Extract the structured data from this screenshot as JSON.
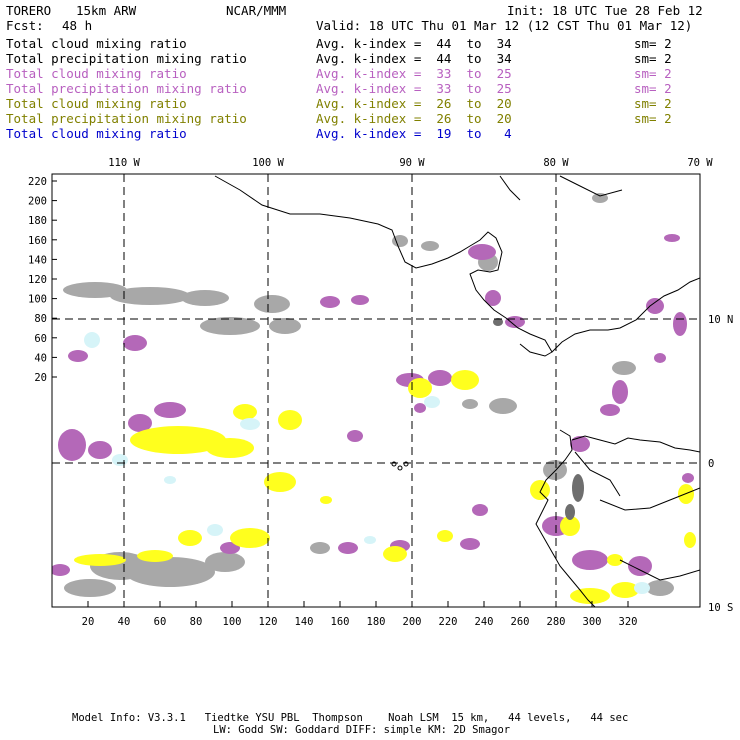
{
  "header": {
    "model": "TORERO",
    "resolution": "15km ARW",
    "org": "NCAR/MMM",
    "init": "Init: 18 UTC Tue 28 Feb 12",
    "fcst_label": "Fcst:",
    "fcst_value": "48 h",
    "valid": "Valid: 18 UTC Thu 01 Mar 12 (12 CST Thu 01 Mar 12)"
  },
  "legend": [
    {
      "field": "Total cloud mixing ratio",
      "k": "Avg. k-index =  44  to  34",
      "sm": "sm= 2",
      "color": "#000000"
    },
    {
      "field": "Total precipitation mixing ratio",
      "k": "Avg. k-index =  44  to  34",
      "sm": "sm= 2",
      "color": "#000000"
    },
    {
      "field": "Total cloud mixing ratio",
      "k": "Avg. k-index =  33  to  25",
      "sm": "sm= 2",
      "color": "#b860c0"
    },
    {
      "field": "Total precipitation mixing ratio",
      "k": "Avg. k-index =  33  to  25",
      "sm": "sm= 2",
      "color": "#b860c0"
    },
    {
      "field": "Total cloud mixing ratio",
      "k": "Avg. k-index =  26  to  20",
      "sm": "sm= 2",
      "color": "#808000"
    },
    {
      "field": "Total precipitation mixing ratio",
      "k": "Avg. k-index =  26  to  20",
      "sm": "sm= 2",
      "color": "#808000"
    },
    {
      "field": "Total cloud mixing ratio",
      "k": "Avg. k-index =  19  to   4",
      "sm": "",
      "color": "#0000cc"
    }
  ],
  "map": {
    "lon_labels": [
      "110 W",
      "100 W",
      "90 W",
      "80 W",
      "70 W"
    ],
    "lat_labels": [
      "10 N",
      "0",
      "10 S"
    ],
    "y_ticks": [
      "220",
      "200",
      "180",
      "160",
      "140",
      "120",
      "100",
      "80",
      "60",
      "40",
      "20"
    ],
    "x_ticks": [
      "20",
      "40",
      "60",
      "80",
      "100",
      "120",
      "140",
      "160",
      "180",
      "200",
      "220",
      "240",
      "260",
      "280",
      "300",
      "320"
    ],
    "colors": {
      "gray": "#a8a8a8",
      "dark_gray": "#6e6e6e",
      "purple": "#b468b8",
      "yellow": "#ffff1e",
      "light_cyan": "#d6f4f8"
    }
  },
  "footer": {
    "line1": "Model Info: V3.3.1   Tiedtke YSU PBL  Thompson    Noah LSM  15 km,   44 levels,   44 sec",
    "line2": "LW: Godd SW: Goddard DIFF: simple KM: 2D Smagor"
  }
}
